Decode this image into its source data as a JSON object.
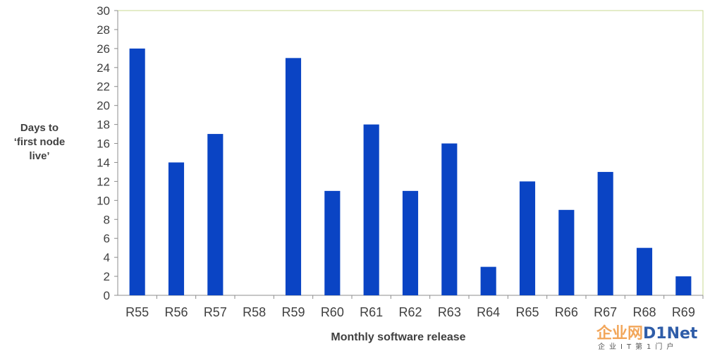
{
  "chart_data": {
    "type": "bar",
    "categories": [
      "R55",
      "R56",
      "R57",
      "R58",
      "R59",
      "R60",
      "R61",
      "R62",
      "R63",
      "R64",
      "R65",
      "R66",
      "R67",
      "R68",
      "R69"
    ],
    "values": [
      26,
      14,
      17,
      0,
      25,
      11,
      18,
      11,
      16,
      3,
      12,
      9,
      13,
      5,
      2
    ],
    "xlabel": "Monthly software release",
    "ylabel": "Days to\n‘first node\nlive’",
    "ylim": [
      0,
      30
    ],
    "yticks": [
      0,
      2,
      4,
      6,
      8,
      10,
      12,
      14,
      16,
      18,
      20,
      22,
      24,
      26,
      28,
      30
    ],
    "grid": false,
    "legend": "none",
    "bar_color": "#0a44c4",
    "plot_border_color": "#c8d890"
  },
  "watermark": {
    "logo_cn": "企业网",
    "logo_en": "D1Net",
    "sub": "企业IT第1门户",
    "cn_color": "#f2a65a",
    "en_color": "#2f5da8"
  }
}
